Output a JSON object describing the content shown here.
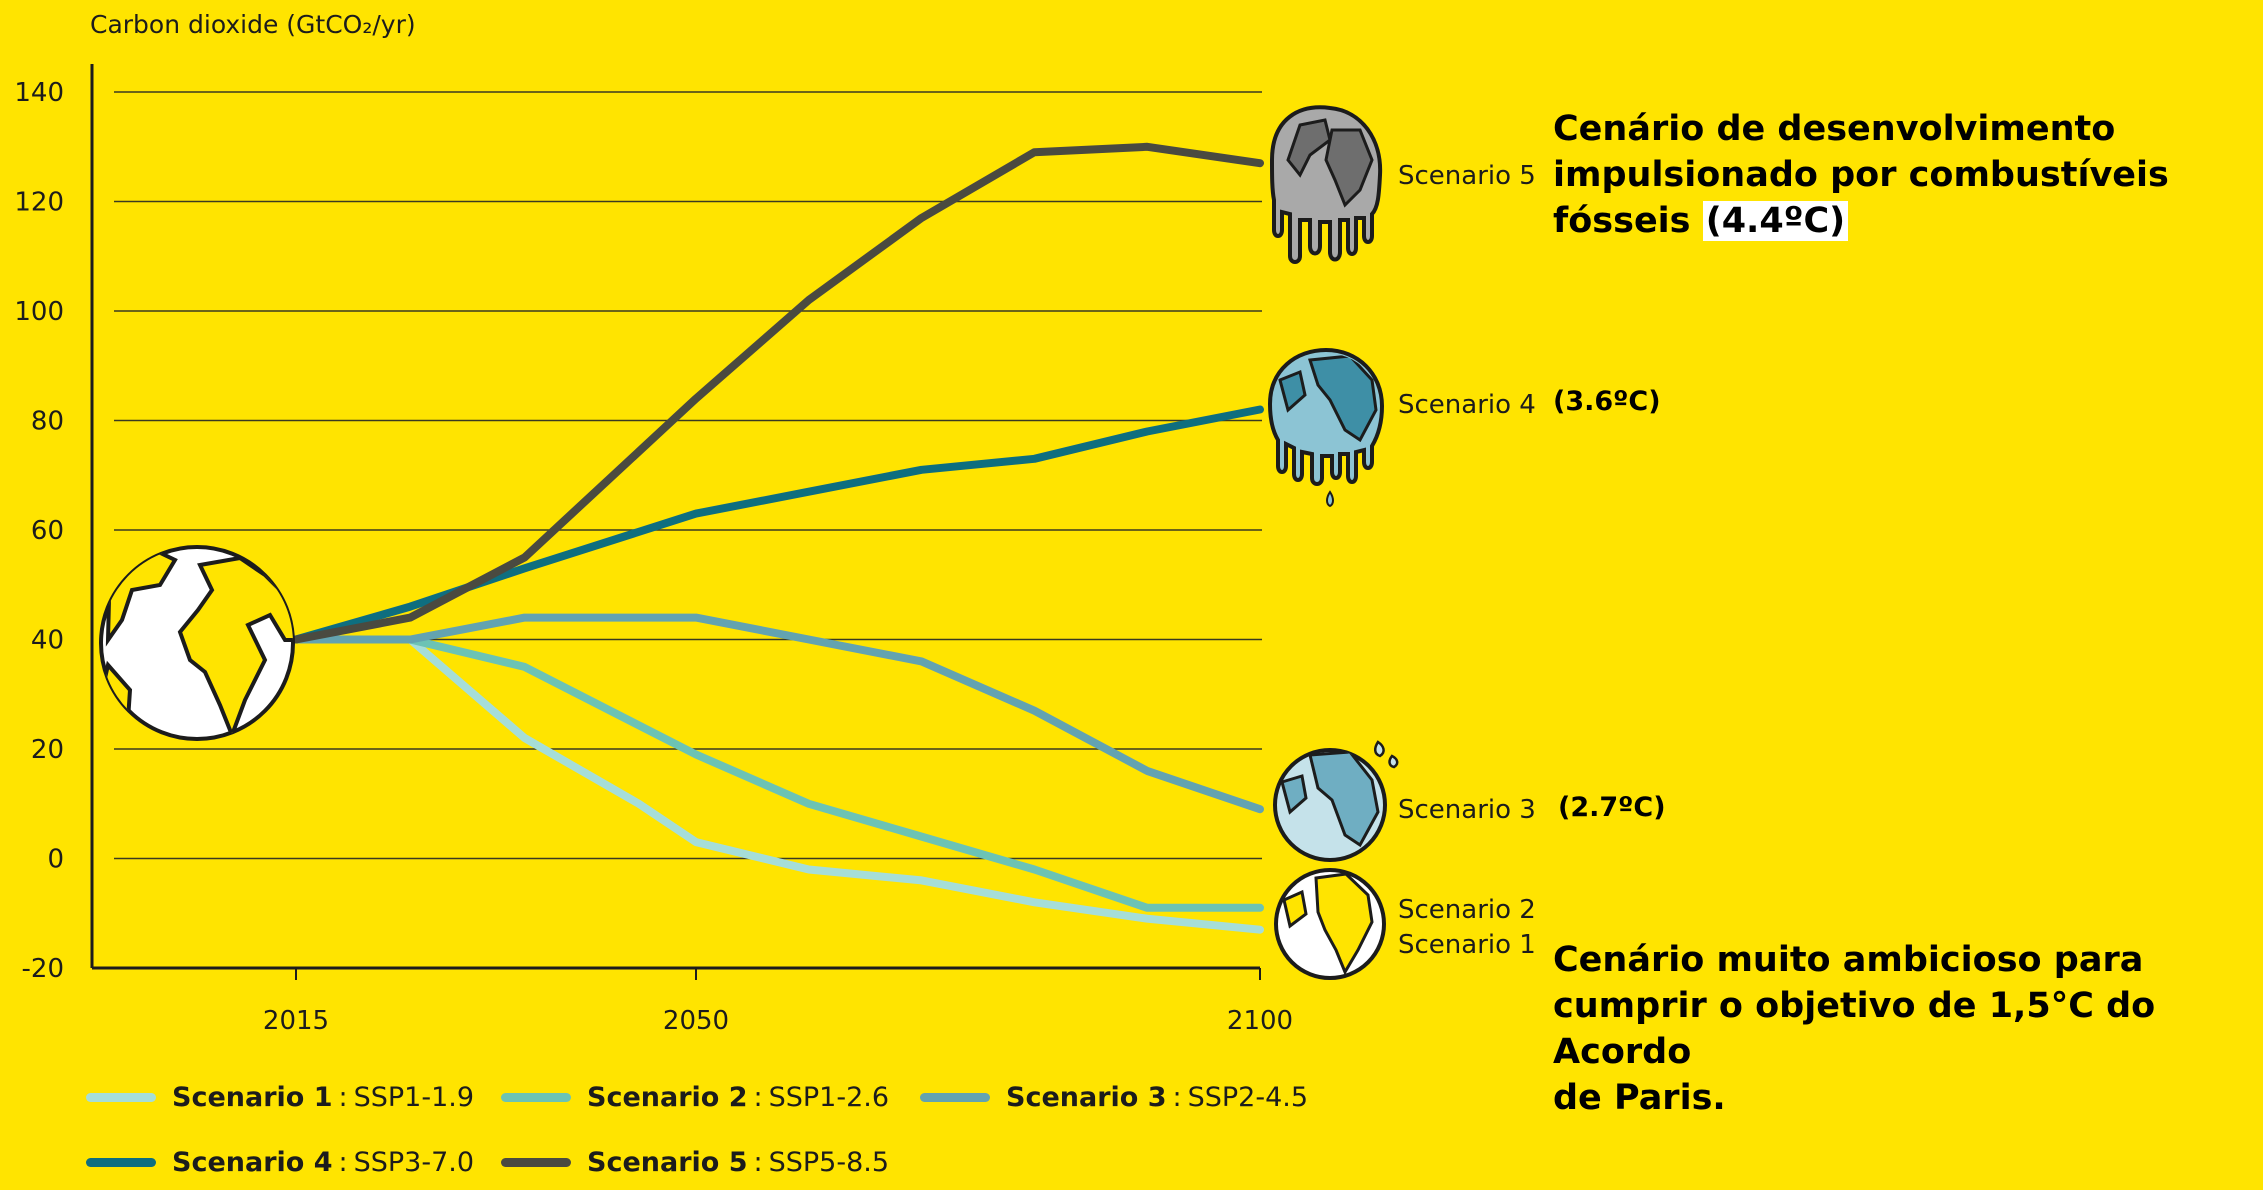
{
  "chart_data": {
    "type": "line",
    "ylabel": "Carbon dioxide (GtCO₂/yr)",
    "xlabel": "",
    "ylim": [
      -20,
      140
    ],
    "yticks": [
      140,
      120,
      100,
      80,
      60,
      40,
      20,
      0,
      -20
    ],
    "xticks": [
      2015,
      2050,
      2100
    ],
    "grid": "horizontal",
    "series": [
      {
        "name": "Scenario 1",
        "code": "SSP1-1.9",
        "color": "#A6DED8",
        "x": [
          2015,
          2025,
          2035,
          2045,
          2050,
          2060,
          2070,
          2080,
          2090,
          2100
        ],
        "y": [
          40,
          40,
          22,
          10,
          3,
          -2,
          -4,
          -8,
          -11,
          -13
        ]
      },
      {
        "name": "Scenario 2",
        "code": "SSP1-2.6",
        "color": "#6CC3B4",
        "x": [
          2015,
          2025,
          2035,
          2050,
          2060,
          2070,
          2080,
          2090,
          2100
        ],
        "y": [
          40,
          40,
          35,
          19,
          10,
          4,
          -2,
          -9,
          -9
        ]
      },
      {
        "name": "Scenario 3",
        "code": "SSP2-4.5",
        "color": "#63A3B0",
        "x": [
          2015,
          2025,
          2035,
          2050,
          2060,
          2070,
          2080,
          2090,
          2100
        ],
        "y": [
          40,
          40,
          44,
          44,
          40,
          36,
          27,
          16,
          9
        ]
      },
      {
        "name": "Scenario 4",
        "code": "SSP3-7.0",
        "color": "#0E6E7F",
        "x": [
          2015,
          2025,
          2035,
          2050,
          2060,
          2070,
          2080,
          2090,
          2100
        ],
        "y": [
          40,
          46,
          53,
          63,
          67,
          71,
          73,
          78,
          82
        ]
      },
      {
        "name": "Scenario 5",
        "code": "SSP5-8.5",
        "color": "#4A4A40",
        "x": [
          2015,
          2025,
          2035,
          2050,
          2060,
          2070,
          2080,
          2090,
          2100
        ],
        "y": [
          40,
          44,
          55,
          84,
          102,
          117,
          129,
          130,
          127
        ]
      }
    ]
  },
  "scenario_end_labels": [
    "Scenario 5",
    "Scenario 4",
    "Scenario 3",
    "Scenario 2",
    "Scenario 1"
  ],
  "annotations": {
    "scenario5_line1": "Cenário de desenvolvimento",
    "scenario5_line2": "impulsionado por combustíveis",
    "scenario5_line3a": "fósseis",
    "scenario5_temp": "(4.4ºC)",
    "scenario4_temp": "(3.6ºC)",
    "scenario3_temp": "(2.7ºC)",
    "scenario1_line1": "Cenário muito ambicioso para",
    "scenario1_line2": "cumprir o objetivo de 1,5°C do Acordo",
    "scenario1_line3": "de Paris."
  },
  "legend": [
    {
      "name": "Scenario 1",
      "sep": ":",
      "code": "SSP1-1.9"
    },
    {
      "name": "Scenario 2",
      "sep": ":",
      "code": "SSP1-2.6"
    },
    {
      "name": "Scenario 3",
      "sep": ":",
      "code": "SSP2-4.5"
    },
    {
      "name": "Scenario 4",
      "sep": ":",
      "code": "SSP3-7.0"
    },
    {
      "name": "Scenario 5",
      "sep": ":",
      "code": "SSP5-8.5"
    }
  ],
  "colors": {
    "background": "#FFE400",
    "axis": "#1c1c1c",
    "gridline": "#3a3a20",
    "earth_start_land": "#FFE400",
    "earth_melt_grey": "#A9A9A9",
    "earth_melt_blue": "#8CC4D4",
    "earth_blue_dark": "#3E8FA6"
  },
  "icons": [
    "earth-yellow-icon",
    "earth-melting-grey-icon",
    "earth-melting-blue-icon",
    "earth-sweating-icon",
    "earth-yellow-small-icon"
  ]
}
